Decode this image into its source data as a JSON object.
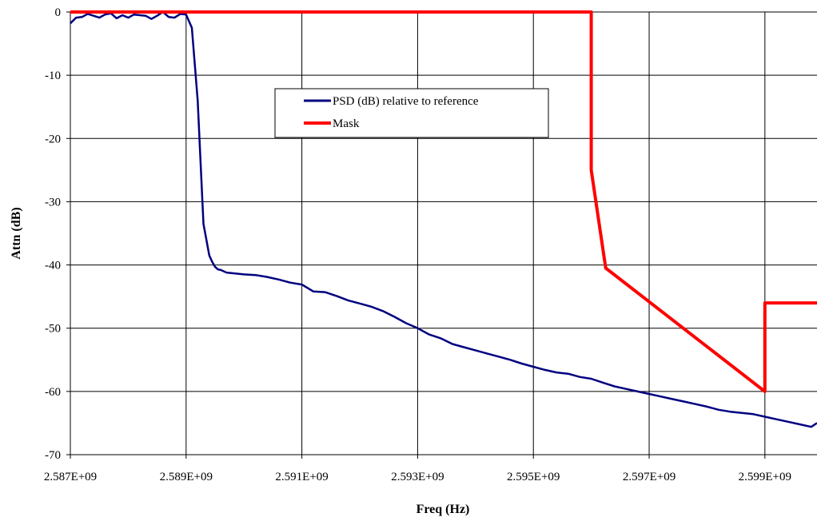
{
  "chart_data": {
    "type": "line",
    "title": "",
    "xlabel": "Freq (Hz)",
    "ylabel": "Attn (dB)",
    "xlim": [
      2587000000,
      2599900000
    ],
    "ylim": [
      -70,
      0
    ],
    "x_ticks": [
      2587000000,
      2589000000,
      2591000000,
      2593000000,
      2595000000,
      2597000000,
      2599000000
    ],
    "x_tick_labels": [
      "2.587E+09",
      "2.589E+09",
      "2.591E+09",
      "2.593E+09",
      "2.595E+09",
      "2.597E+09",
      "2.599E+09"
    ],
    "y_ticks": [
      0,
      -10,
      -20,
      -30,
      -40,
      -50,
      -60,
      -70
    ],
    "y_tick_labels": [
      "0",
      "-10",
      "-20",
      "-30",
      "-40",
      "-50",
      "-60",
      "-70"
    ],
    "grid": true,
    "legend_position": "center",
    "series": [
      {
        "name": "PSD (dB) relative to reference",
        "color": "#000080",
        "x": [
          2587000000,
          2587100000,
          2587200000,
          2587300000,
          2587400000,
          2587500000,
          2587600000,
          2587700000,
          2587800000,
          2587900000,
          2588000000,
          2588100000,
          2588200000,
          2588300000,
          2588400000,
          2588500000,
          2588600000,
          2588700000,
          2588800000,
          2588900000,
          2589000000,
          2589100000,
          2589200000,
          2589300000,
          2589400000,
          2589450000,
          2589500000,
          2589550000,
          2589600000,
          2589700000,
          2589800000,
          2590000000,
          2590200000,
          2590400000,
          2590600000,
          2590800000,
          2591000000,
          2591200000,
          2591400000,
          2591600000,
          2591800000,
          2592000000,
          2592200000,
          2592400000,
          2592600000,
          2592800000,
          2593000000,
          2593200000,
          2593400000,
          2593600000,
          2593800000,
          2594000000,
          2594200000,
          2594400000,
          2594600000,
          2594800000,
          2595000000,
          2595200000,
          2595400000,
          2595600000,
          2595800000,
          2596000000,
          2596200000,
          2596400000,
          2596600000,
          2596800000,
          2597000000,
          2597200000,
          2597400000,
          2597600000,
          2597800000,
          2598000000,
          2598200000,
          2598400000,
          2598600000,
          2598800000,
          2599000000,
          2599200000,
          2599400000,
          2599600000,
          2599800000,
          2599900000
        ],
        "y": [
          -1.8,
          -0.9,
          -0.8,
          -0.3,
          -0.6,
          -0.9,
          -0.4,
          -0.2,
          -1.0,
          -0.5,
          -0.9,
          -0.4,
          -0.5,
          -0.6,
          -1.1,
          -0.6,
          0.0,
          -0.8,
          -0.9,
          -0.3,
          -0.4,
          -2.5,
          -14.0,
          -33.5,
          -38.5,
          -39.5,
          -40.3,
          -40.7,
          -40.8,
          -41.2,
          -41.3,
          -41.5,
          -41.6,
          -41.9,
          -42.3,
          -42.8,
          -43.1,
          -44.2,
          -44.3,
          -44.9,
          -45.6,
          -46.1,
          -46.6,
          -47.3,
          -48.2,
          -49.2,
          -50.0,
          -51.0,
          -51.6,
          -52.5,
          -53.0,
          -53.5,
          -54.0,
          -54.5,
          -55.0,
          -55.6,
          -56.1,
          -56.6,
          -57.0,
          -57.2,
          -57.7,
          -58.0,
          -58.6,
          -59.2,
          -59.6,
          -60.0,
          -60.4,
          -60.8,
          -61.2,
          -61.6,
          -62.0,
          -62.4,
          -62.9,
          -63.2,
          -63.4,
          -63.6,
          -64.0,
          -64.4,
          -64.8,
          -65.2,
          -65.6,
          -65.0
        ]
      },
      {
        "name": "Mask",
        "color": "#ff0000",
        "x": [
          2587000000,
          2596000000,
          2596000000,
          2596250000,
          2599000000,
          2599000000,
          2599900000
        ],
        "y": [
          0,
          0,
          -25,
          -40.5,
          -60,
          -46,
          -46
        ]
      }
    ]
  }
}
